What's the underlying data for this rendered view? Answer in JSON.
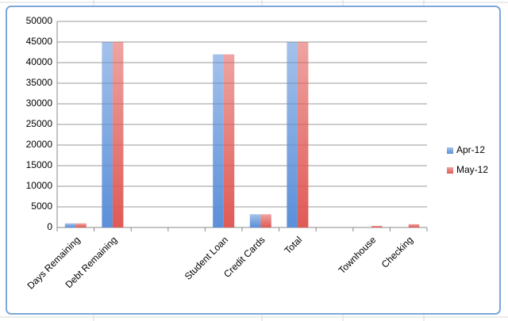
{
  "chart_data": {
    "type": "bar",
    "categories": [
      "Days Remaining",
      "Debt Remaining",
      null,
      null,
      "Student Loan",
      "Credit Cards",
      "Total",
      null,
      "Townhouse",
      "Checking"
    ],
    "series": [
      {
        "name": "Apr-12",
        "color": "#5b8fd9",
        "values": [
          1000,
          45000,
          null,
          null,
          42000,
          3200,
          45000,
          null,
          null,
          null
        ]
      },
      {
        "name": "May-12",
        "color": "#e05a55",
        "values": [
          1000,
          45000,
          null,
          null,
          42000,
          3200,
          45000,
          null,
          400,
          800
        ]
      }
    ],
    "ylim": [
      0,
      50000
    ],
    "yticks": [
      0,
      5000,
      10000,
      15000,
      20000,
      25000,
      30000,
      35000,
      40000,
      45000,
      50000
    ],
    "grid": true,
    "legend": "right"
  }
}
